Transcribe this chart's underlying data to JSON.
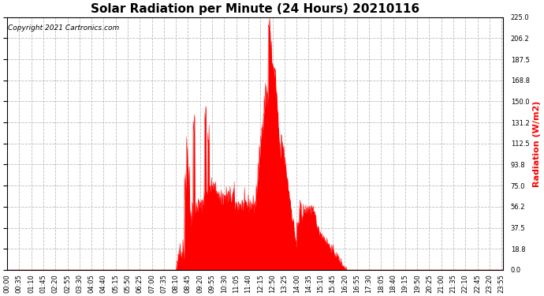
{
  "title": "Solar Radiation per Minute (24 Hours) 20210116",
  "ylabel": "Radiation (W/m2)",
  "copyright_text": "Copyright 2021 Cartronics.com",
  "ylabel_color": "#ff0000",
  "fill_color": "#ff0000",
  "line_color": "#ff0000",
  "background_color": "#ffffff",
  "grid_color": "#bbbbbb",
  "ymin": 0.0,
  "ymax": 225.0,
  "yticks": [
    0.0,
    18.8,
    37.5,
    56.2,
    75.0,
    93.8,
    112.5,
    131.2,
    150.0,
    168.8,
    187.5,
    206.2,
    225.0
  ],
  "total_minutes": 1440,
  "title_fontsize": 11,
  "tick_fontsize": 6,
  "ylabel_fontsize": 8,
  "copyright_fontsize": 6.5
}
